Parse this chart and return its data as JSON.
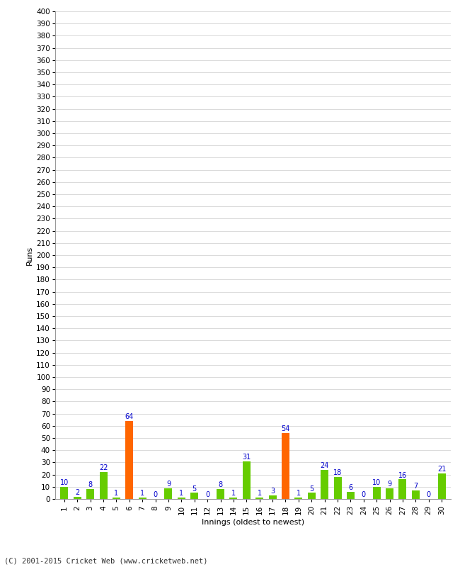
{
  "title": "",
  "xlabel": "Innings (oldest to newest)",
  "ylabel": "Runs",
  "footer": "(C) 2001-2015 Cricket Web (www.cricketweb.net)",
  "innings": [
    1,
    2,
    3,
    4,
    5,
    6,
    7,
    8,
    9,
    10,
    11,
    12,
    13,
    14,
    15,
    16,
    17,
    18,
    19,
    20,
    21,
    22,
    23,
    24,
    25,
    26,
    27,
    28,
    29,
    30
  ],
  "values": [
    10,
    2,
    8,
    22,
    1,
    64,
    1,
    0,
    9,
    1,
    5,
    0,
    8,
    1,
    31,
    1,
    3,
    54,
    1,
    5,
    24,
    18,
    6,
    0,
    10,
    9,
    16,
    7,
    0,
    21
  ],
  "colors": [
    "#66cc00",
    "#66cc00",
    "#66cc00",
    "#66cc00",
    "#66cc00",
    "#ff6600",
    "#66cc00",
    "#66cc00",
    "#66cc00",
    "#66cc00",
    "#66cc00",
    "#66cc00",
    "#66cc00",
    "#66cc00",
    "#66cc00",
    "#66cc00",
    "#66cc00",
    "#ff6600",
    "#66cc00",
    "#66cc00",
    "#66cc00",
    "#66cc00",
    "#66cc00",
    "#66cc00",
    "#66cc00",
    "#66cc00",
    "#66cc00",
    "#66cc00",
    "#66cc00",
    "#66cc00"
  ],
  "ylim": [
    0,
    400
  ],
  "yticks": [
    0,
    10,
    20,
    30,
    40,
    50,
    60,
    70,
    80,
    90,
    100,
    110,
    120,
    130,
    140,
    150,
    160,
    170,
    180,
    190,
    200,
    210,
    220,
    230,
    240,
    250,
    260,
    270,
    280,
    290,
    300,
    310,
    320,
    330,
    340,
    350,
    360,
    370,
    380,
    390,
    400
  ],
  "background_color": "#ffffff",
  "grid_color": "#cccccc",
  "label_color": "#0000cc",
  "bar_width": 0.6,
  "figsize": [
    6.5,
    8.0
  ],
  "dpi": 100
}
